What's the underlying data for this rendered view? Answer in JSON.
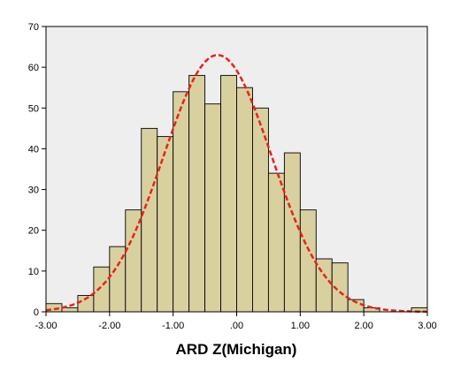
{
  "chart_data": {
    "type": "bar",
    "subtype": "histogram",
    "title": "",
    "xlabel": "ARD Z(Michigan)",
    "ylabel": "",
    "xlim": [
      -3.0,
      3.0
    ],
    "ylim": [
      0,
      70
    ],
    "x_tick_labels": [
      "-3.00",
      "-2.00",
      "-1.00",
      ".00",
      "1.00",
      "2.00",
      "3.00"
    ],
    "x_tick_values": [
      -3.0,
      -2.0,
      -1.0,
      0.0,
      1.0,
      2.0,
      3.0
    ],
    "y_tick_labels": [
      "0",
      "10",
      "20",
      "30",
      "40",
      "50",
      "60",
      "70"
    ],
    "y_tick_values": [
      0,
      10,
      20,
      30,
      40,
      50,
      60,
      70
    ],
    "grid": false,
    "legend": "none",
    "series": [
      {
        "kind": "histogram",
        "bin_edges": [
          -3.0,
          -2.75,
          -2.5,
          -2.25,
          -2.0,
          -1.75,
          -1.5,
          -1.25,
          -1.0,
          -0.75,
          -0.5,
          -0.25,
          0.0,
          0.25,
          0.5,
          0.75,
          1.0,
          1.25,
          1.5,
          1.75,
          2.0,
          2.25,
          2.5,
          2.75,
          3.0
        ],
        "counts": [
          2,
          1,
          4,
          11,
          16,
          25,
          45,
          43,
          54,
          58,
          51,
          58,
          55,
          50,
          34,
          39,
          25,
          13,
          12,
          3,
          1,
          0,
          0,
          1
        ]
      },
      {
        "kind": "normal-curve",
        "mean": -0.3,
        "std": 0.85,
        "peak": 63
      }
    ],
    "colors": {
      "plot_background": "#eeeeee",
      "bar_fill": "#d9d0a0",
      "bar_stroke": "#000000",
      "curve": "#e8231a",
      "axis": "#000000"
    }
  }
}
